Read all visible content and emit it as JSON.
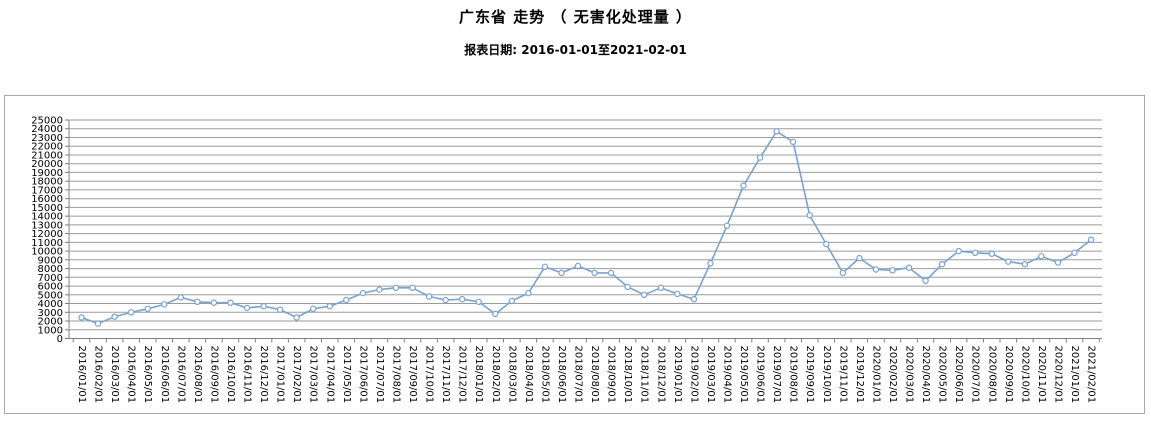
{
  "header": {
    "title": "广东省 走势 （ 无害化处理量 ）",
    "subtitle": "报表日期: 2016-01-01至2021-02-01"
  },
  "chart_data": {
    "type": "line",
    "title": "广东省 走势 （ 无害化处理量 ）",
    "subtitle": "报表日期: 2016-01-01至2021-02-01",
    "xlabel": "",
    "ylabel": "",
    "ylim": [
      0,
      25000
    ],
    "y_tick_step": 1000,
    "y_ticks": [
      0,
      1000,
      2000,
      3000,
      4000,
      5000,
      6000,
      7000,
      8000,
      9000,
      10000,
      11000,
      12000,
      13000,
      14000,
      15000,
      16000,
      17000,
      18000,
      19000,
      20000,
      21000,
      22000,
      23000,
      24000,
      25000
    ],
    "grid": true,
    "legend": false,
    "marker": "circle-hollow",
    "categories": [
      "2016/01/01",
      "2016/02/01",
      "2016/03/01",
      "2016/04/01",
      "2016/05/01",
      "2016/06/01",
      "2016/07/01",
      "2016/08/01",
      "2016/09/01",
      "2016/10/01",
      "2016/11/01",
      "2016/12/01",
      "2017/01/01",
      "2017/02/01",
      "2017/03/01",
      "2017/04/01",
      "2017/05/01",
      "2017/06/01",
      "2017/07/01",
      "2017/08/01",
      "2017/09/01",
      "2017/10/01",
      "2017/11/01",
      "2017/12/01",
      "2018/01/01",
      "2018/02/01",
      "2018/03/01",
      "2018/04/01",
      "2018/05/01",
      "2018/06/01",
      "2018/07/01",
      "2018/08/01",
      "2018/09/01",
      "2018/10/01",
      "2018/11/01",
      "2018/12/01",
      "2019/01/01",
      "2019/02/01",
      "2019/03/01",
      "2019/04/01",
      "2019/05/01",
      "2019/06/01",
      "2019/07/01",
      "2019/08/01",
      "2019/09/01",
      "2019/10/01",
      "2019/11/01",
      "2019/12/01",
      "2020/01/01",
      "2020/02/01",
      "2020/03/01",
      "2020/04/01",
      "2020/05/01",
      "2020/06/01",
      "2020/07/01",
      "2020/08/01",
      "2020/09/01",
      "2020/10/01",
      "2020/11/01",
      "2020/12/01",
      "2021/01/01",
      "2021/02/01"
    ],
    "values": [
      2400,
      1700,
      2500,
      3000,
      3400,
      3900,
      4700,
      4200,
      4100,
      4100,
      3500,
      3700,
      3300,
      2400,
      3400,
      3700,
      4400,
      5200,
      5600,
      5800,
      5800,
      4800,
      4400,
      4500,
      4200,
      2800,
      4300,
      5200,
      8200,
      7500,
      8300,
      7500,
      7500,
      5900,
      5000,
      5800,
      5100,
      4500,
      8600,
      12900,
      17500,
      20700,
      23700,
      22500,
      14100,
      10800,
      7500,
      9200,
      7900,
      7800,
      8100,
      6600,
      8500,
      10000,
      9800,
      9700,
      8800,
      8500,
      9400,
      8700,
      9800,
      11300
    ],
    "colors": {
      "line": "#7ba2cf",
      "marker_fill": "#ffffff",
      "grid": "#9b9b9b",
      "axis": "#808080",
      "border": "#a9a9a9",
      "text": "#000000"
    }
  }
}
